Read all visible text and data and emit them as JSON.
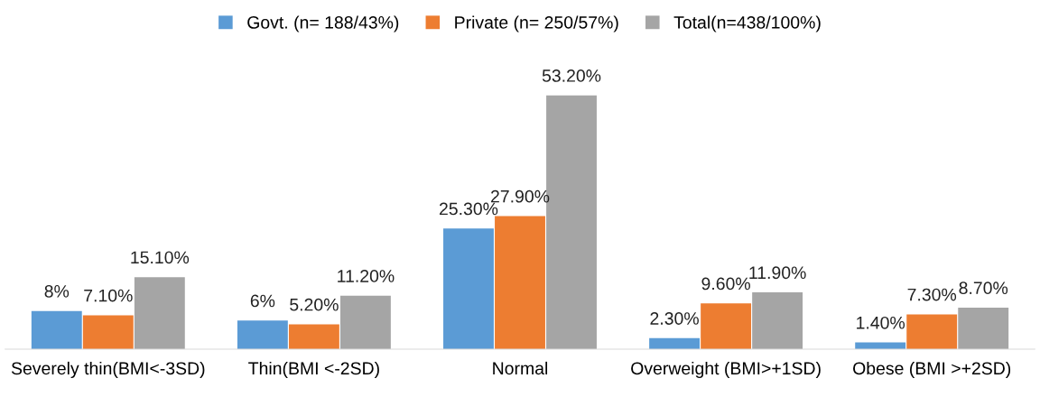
{
  "chart_data": {
    "type": "bar",
    "categories": [
      "Severely thin(BMI<-3SD)",
      "Thin(BMI <-2SD)",
      "Normal",
      "Overweight (BMI>+1SD)",
      "Obese (BMI >+2SD)"
    ],
    "series": [
      {
        "name": "Govt. (n= 188/43%)",
        "color": "#5b9bd5",
        "values": [
          8,
          6,
          25.3,
          2.3,
          1.4
        ],
        "value_labels": [
          "8%",
          "6%",
          "25.30%",
          "2.30%",
          "1.40%"
        ]
      },
      {
        "name": "Private (n= 250/57%)",
        "color": "#ed7d31",
        "values": [
          7.1,
          5.2,
          27.9,
          9.6,
          7.3
        ],
        "value_labels": [
          "7.10%",
          "5.20%",
          "27.90%",
          "9.60%",
          "7.30%"
        ]
      },
      {
        "name": "Total(n=438/100%)",
        "color": "#a5a5a5",
        "values": [
          15.1,
          11.2,
          53.2,
          11.9,
          8.7
        ],
        "value_labels": [
          "15.10%",
          "11.20%",
          "53.20%",
          "11.90%",
          "8.70%"
        ]
      }
    ],
    "legend": "top"
  }
}
